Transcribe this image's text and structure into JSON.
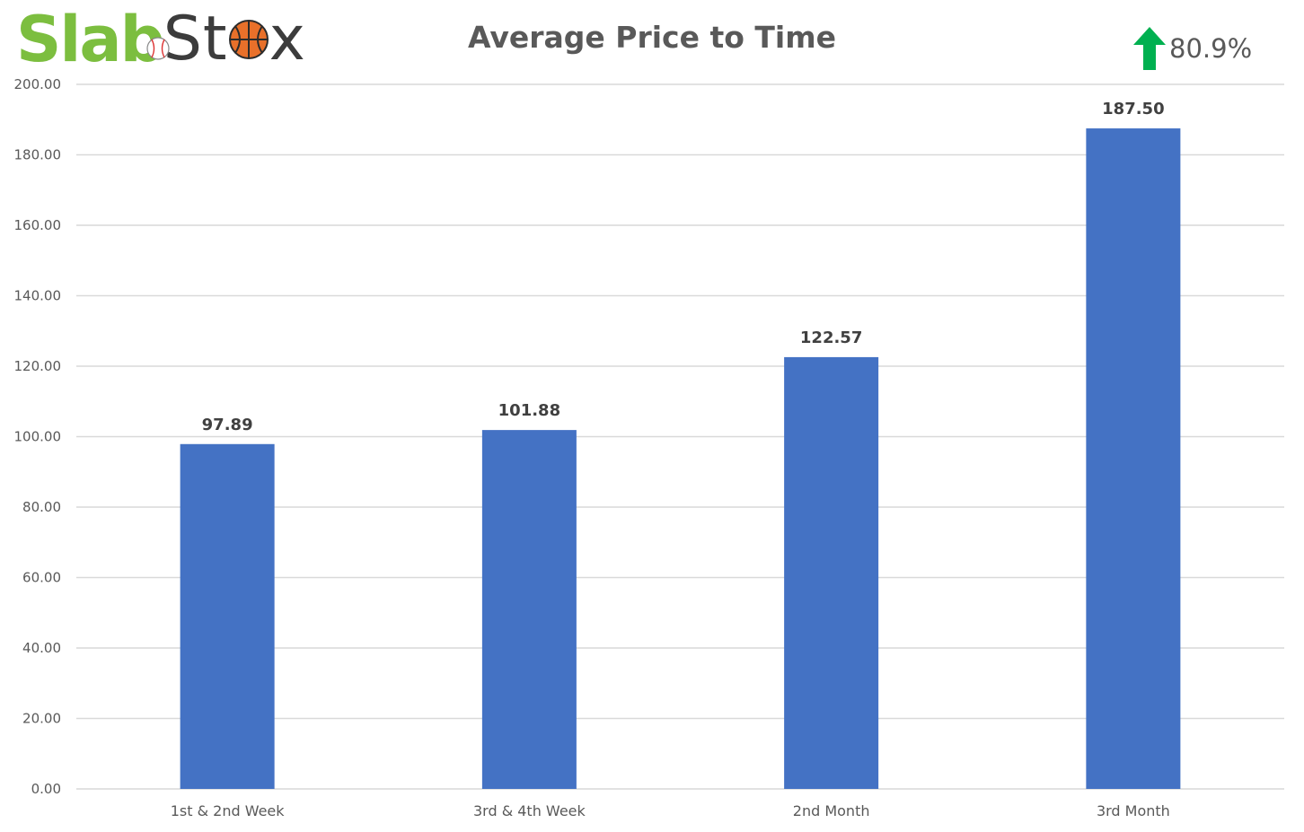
{
  "logo": {
    "part1": "Slab",
    "part2_start": "St",
    "part2_end": "x"
  },
  "change": {
    "value": "80.9%",
    "icon": "green-up-arrow-icon",
    "color": "#00b050"
  },
  "colors": {
    "bar": "#4472c4",
    "grid": "#d9d9d9",
    "logo_green": "#7cbe3f"
  },
  "chart_data": {
    "type": "bar",
    "title": "Average Price to Time",
    "categories": [
      "1st & 2nd Week",
      "3rd & 4th Week",
      "2nd Month",
      "3rd Month"
    ],
    "values": [
      97.89,
      101.88,
      122.57,
      187.5
    ],
    "value_labels": [
      "97.89",
      "101.88",
      "122.57",
      "187.50"
    ],
    "ylim": [
      0,
      200
    ],
    "yticks": [
      "0.00",
      "20.00",
      "40.00",
      "60.00",
      "80.00",
      "100.00",
      "120.00",
      "140.00",
      "160.00",
      "180.00",
      "200.00"
    ],
    "grid": true,
    "legend": "none"
  }
}
